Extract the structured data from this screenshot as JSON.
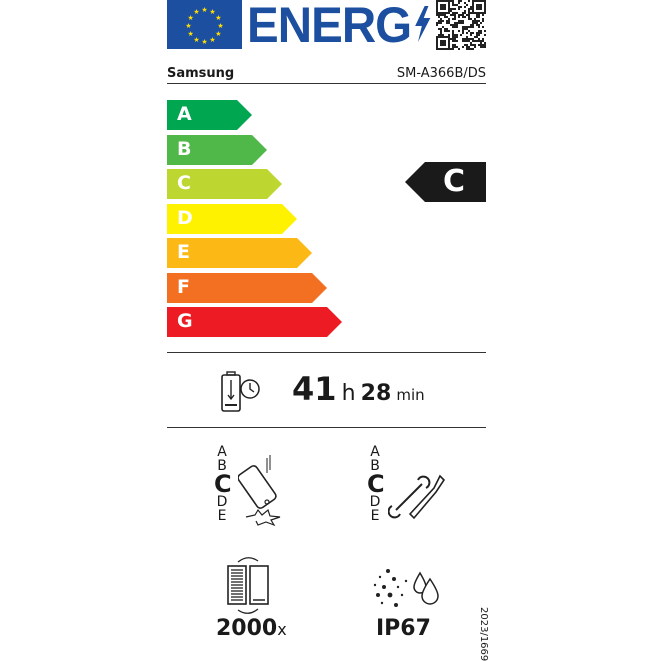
{
  "header": {
    "logo_text": "ENERG",
    "brand": "Samsung",
    "model": "SM-A366B/DS"
  },
  "scale": {
    "classes": [
      {
        "letter": "A",
        "color": "#00a650"
      },
      {
        "letter": "B",
        "color": "#50b848"
      },
      {
        "letter": "C",
        "color": "#bed630"
      },
      {
        "letter": "D",
        "color": "#fff200"
      },
      {
        "letter": "E",
        "color": "#fcb814"
      },
      {
        "letter": "F",
        "color": "#f36f21"
      },
      {
        "letter": "G",
        "color": "#ed1c24"
      }
    ],
    "rating": "C",
    "rating_color": "#1a1a1a"
  },
  "endurance": {
    "hours": "41",
    "h_unit": "h",
    "minutes": "28",
    "min_unit": "min"
  },
  "drop_resistance": {
    "letters": [
      "A",
      "B",
      "C",
      "D",
      "E"
    ],
    "selected": "C"
  },
  "repairability": {
    "letters": [
      "A",
      "B",
      "C",
      "D",
      "E"
    ],
    "selected": "C"
  },
  "battery_cycles": {
    "value": "2000",
    "unit": "x"
  },
  "ingress": {
    "value": "IP67"
  },
  "regulation": "2023/1669"
}
